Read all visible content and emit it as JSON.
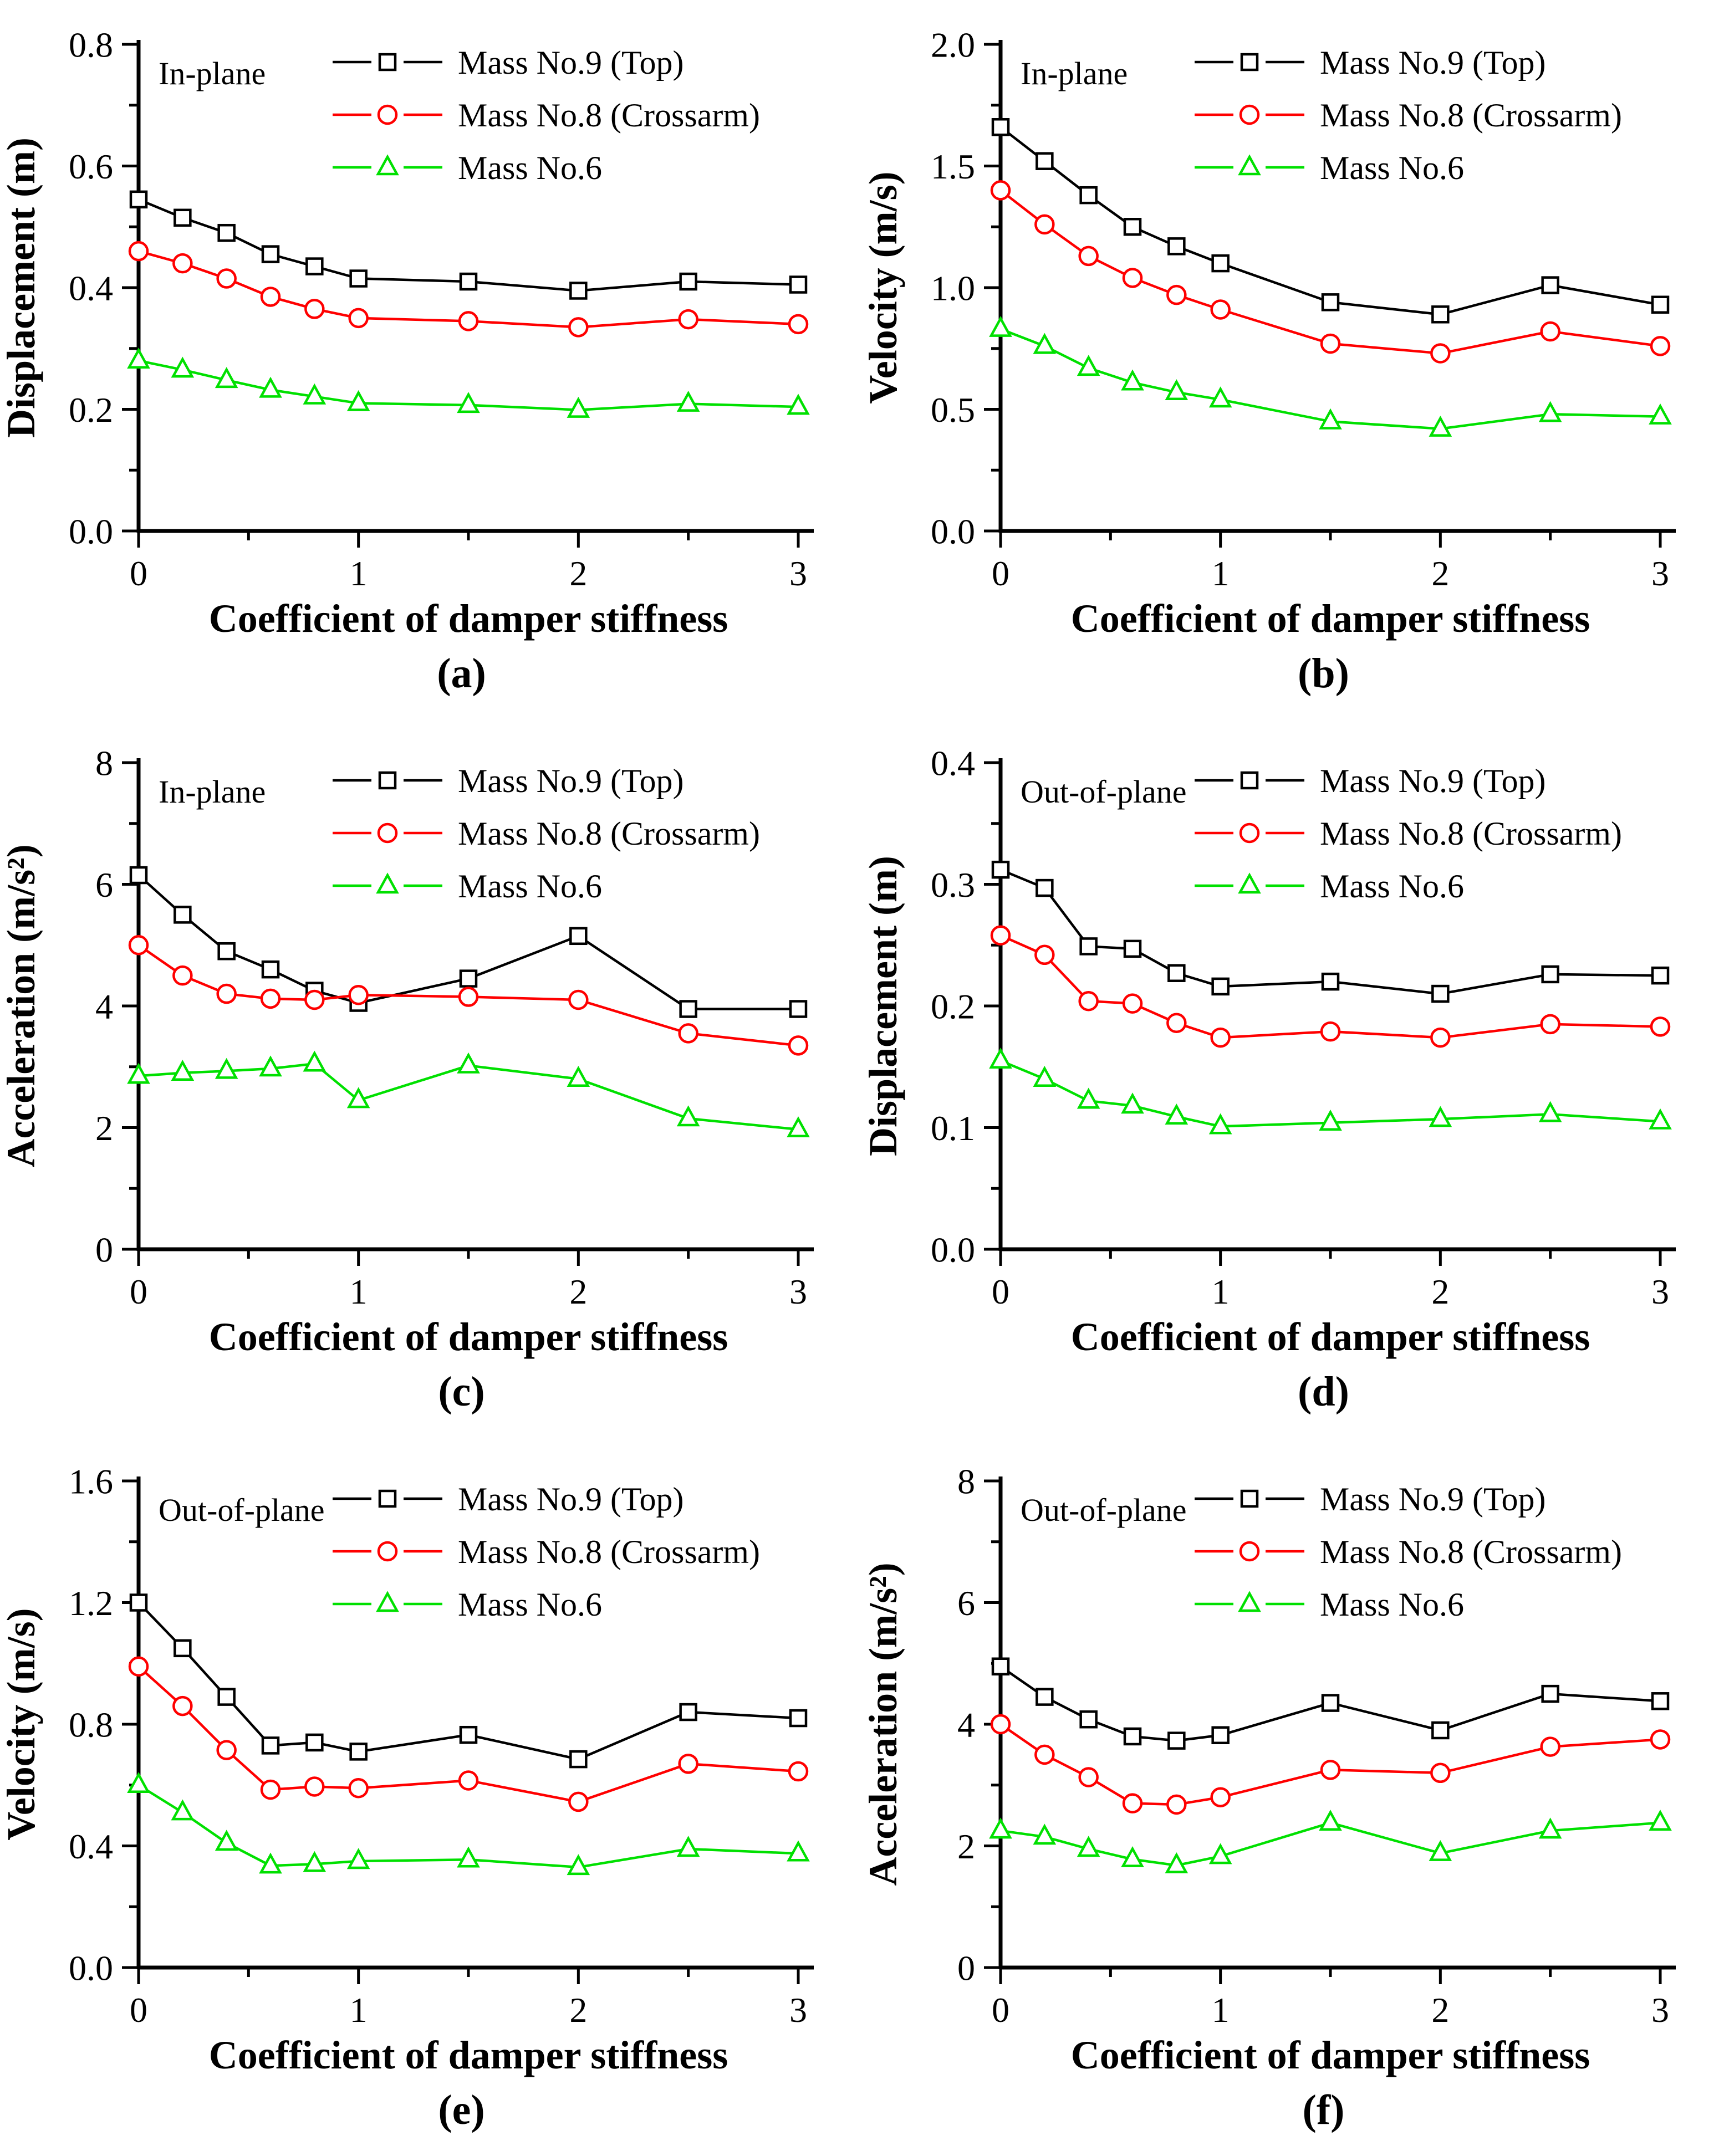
{
  "figure_caption_letters": [
    "(a)",
    "(b)",
    "(c)",
    "(d)",
    "(e)",
    "(f)"
  ],
  "colors": {
    "mass9": "#000000",
    "mass8": "#FF0000",
    "mass6": "#00E000"
  },
  "chart_data": [
    {
      "type": "line",
      "panel": "a",
      "panel_label": "(a)",
      "annotation": "In-plane",
      "xlabel": "Coefficient of damper stiffness",
      "ylabel": "Displacement (m)",
      "xlim": [
        0,
        3
      ],
      "ylim": [
        0,
        0.8
      ],
      "xticks_major": [
        0,
        1,
        2,
        3
      ],
      "xtick_labels": [
        "0",
        "1",
        "2",
        "3"
      ],
      "xticks_minor": [
        0.5,
        1.5,
        2.5
      ],
      "yticks": [
        0,
        0.2,
        0.4,
        0.6,
        0.8
      ],
      "ytick_labels": [
        "0.0",
        "0.2",
        "0.4",
        "0.6",
        "0.8"
      ],
      "grid": false,
      "legend_position": "top-right",
      "x": [
        0,
        0.2,
        0.4,
        0.6,
        0.8,
        1,
        1.5,
        2,
        2.5,
        3
      ],
      "series": [
        {
          "name": "Mass No.9 (Top)",
          "color": "#000000",
          "marker": "square",
          "values": [
            0.545,
            0.515,
            0.49,
            0.455,
            0.435,
            0.415,
            0.41,
            0.395,
            0.41,
            0.405
          ]
        },
        {
          "name": "Mass No.8 (Crossarm)",
          "color": "#FF0000",
          "marker": "circle",
          "values": [
            0.46,
            0.44,
            0.415,
            0.385,
            0.365,
            0.35,
            0.345,
            0.335,
            0.348,
            0.34
          ]
        },
        {
          "name": "Mass No.6",
          "color": "#00E000",
          "marker": "triangle",
          "values": [
            0.28,
            0.265,
            0.248,
            0.232,
            0.221,
            0.21,
            0.207,
            0.199,
            0.209,
            0.204
          ]
        }
      ]
    },
    {
      "type": "line",
      "panel": "b",
      "panel_label": "(b)",
      "annotation": "In-plane",
      "xlabel": "Coefficient of damper stiffness",
      "ylabel": "Velocity (m/s)",
      "xlim": [
        0,
        3
      ],
      "ylim": [
        0,
        2.0
      ],
      "xticks_major": [
        0,
        1,
        2,
        3
      ],
      "xtick_labels": [
        "0",
        "1",
        "2",
        "3"
      ],
      "xticks_minor": [
        0.5,
        1.5,
        2.5
      ],
      "yticks": [
        0,
        0.5,
        1.0,
        1.5,
        2.0
      ],
      "ytick_labels": [
        "0.0",
        "0.5",
        "1.0",
        "1.5",
        "2.0"
      ],
      "grid": false,
      "legend_position": "top-right",
      "x": [
        0,
        0.2,
        0.4,
        0.6,
        0.8,
        1,
        1.5,
        2,
        2.5,
        3
      ],
      "series": [
        {
          "name": "Mass No.9 (Top)",
          "color": "#000000",
          "marker": "square",
          "values": [
            1.66,
            1.52,
            1.38,
            1.25,
            1.17,
            1.1,
            0.94,
            0.89,
            1.01,
            0.93
          ]
        },
        {
          "name": "Mass No.8 (Crossarm)",
          "color": "#FF0000",
          "marker": "circle",
          "values": [
            1.4,
            1.26,
            1.13,
            1.04,
            0.97,
            0.91,
            0.77,
            0.73,
            0.82,
            0.76
          ]
        },
        {
          "name": "Mass No.6",
          "color": "#00E000",
          "marker": "triangle",
          "values": [
            0.83,
            0.76,
            0.67,
            0.61,
            0.57,
            0.54,
            0.45,
            0.42,
            0.48,
            0.47
          ]
        }
      ]
    },
    {
      "type": "line",
      "panel": "c",
      "panel_label": "(c)",
      "annotation": "In-plane",
      "xlabel": "Coefficient of damper stiffness",
      "ylabel": "Acceleration (m/s²)",
      "xlim": [
        0,
        3
      ],
      "ylim": [
        0,
        8
      ],
      "xticks_major": [
        0,
        1,
        2,
        3
      ],
      "xtick_labels": [
        "0",
        "1",
        "2",
        "3"
      ],
      "xticks_minor": [
        0.5,
        1.5,
        2.5
      ],
      "yticks": [
        0,
        2,
        4,
        6,
        8
      ],
      "ytick_labels": [
        "0",
        "2",
        "4",
        "6",
        "8"
      ],
      "grid": false,
      "legend_position": "top-right",
      "x": [
        0,
        0.2,
        0.4,
        0.6,
        0.8,
        1,
        1.5,
        2,
        2.5,
        3
      ],
      "series": [
        {
          "name": "Mass No.9 (Top)",
          "color": "#000000",
          "marker": "square",
          "values": [
            6.15,
            5.5,
            4.9,
            4.6,
            4.25,
            4.05,
            4.45,
            5.15,
            3.95,
            3.95
          ]
        },
        {
          "name": "Mass No.8 (Crossarm)",
          "color": "#FF0000",
          "marker": "circle",
          "values": [
            5.0,
            4.5,
            4.2,
            4.12,
            4.1,
            4.18,
            4.15,
            4.1,
            3.55,
            3.35
          ]
        },
        {
          "name": "Mass No.6",
          "color": "#00E000",
          "marker": "triangle",
          "values": [
            2.85,
            2.9,
            2.93,
            2.97,
            3.05,
            2.45,
            3.02,
            2.8,
            2.15,
            1.97
          ]
        }
      ]
    },
    {
      "type": "line",
      "panel": "d",
      "panel_label": "(d)",
      "annotation": "Out-of-plane",
      "xlabel": "Coefficient of damper stiffness",
      "ylabel": "Displacement (m)",
      "xlim": [
        0,
        3
      ],
      "ylim": [
        0,
        0.4
      ],
      "xticks_major": [
        0,
        1,
        2,
        3
      ],
      "xtick_labels": [
        "0",
        "1",
        "2",
        "3"
      ],
      "xticks_minor": [
        0.5,
        1.5,
        2.5
      ],
      "yticks": [
        0,
        0.1,
        0.2,
        0.3,
        0.4
      ],
      "ytick_labels": [
        "0.0",
        "0.1",
        "0.2",
        "0.3",
        "0.4"
      ],
      "grid": false,
      "legend_position": "top-right",
      "x": [
        0,
        0.2,
        0.4,
        0.6,
        0.8,
        1,
        1.5,
        2,
        2.5,
        3
      ],
      "series": [
        {
          "name": "Mass No.9 (Top)",
          "color": "#000000",
          "marker": "square",
          "values": [
            0.312,
            0.297,
            0.249,
            0.247,
            0.227,
            0.216,
            0.22,
            0.21,
            0.226,
            0.225
          ]
        },
        {
          "name": "Mass No.8 (Crossarm)",
          "color": "#FF0000",
          "marker": "circle",
          "values": [
            0.258,
            0.242,
            0.204,
            0.202,
            0.186,
            0.174,
            0.179,
            0.174,
            0.185,
            0.183
          ]
        },
        {
          "name": "Mass No.6",
          "color": "#00E000",
          "marker": "triangle",
          "values": [
            0.155,
            0.14,
            0.122,
            0.118,
            0.109,
            0.101,
            0.104,
            0.107,
            0.111,
            0.105
          ]
        }
      ]
    },
    {
      "type": "line",
      "panel": "e",
      "panel_label": "(e)",
      "annotation": "Out-of-plane",
      "xlabel": "Coefficient of damper stiffness",
      "ylabel": "Velocity (m/s)",
      "xlim": [
        0,
        3
      ],
      "ylim": [
        0,
        1.6
      ],
      "xticks_major": [
        0,
        1,
        2,
        3
      ],
      "xtick_labels": [
        "0",
        "1",
        "2",
        "3"
      ],
      "xticks_minor": [
        0.5,
        1.5,
        2.5
      ],
      "yticks": [
        0,
        0.4,
        0.8,
        1.2,
        1.6
      ],
      "ytick_labels": [
        "0.0",
        "0.4",
        "0.8",
        "1.2",
        "1.6"
      ],
      "grid": false,
      "legend_position": "top-right",
      "x": [
        0,
        0.2,
        0.4,
        0.6,
        0.8,
        1,
        1.5,
        2,
        2.5,
        3
      ],
      "series": [
        {
          "name": "Mass No.9 (Top)",
          "color": "#000000",
          "marker": "square",
          "values": [
            1.2,
            1.05,
            0.89,
            0.73,
            0.74,
            0.71,
            0.765,
            0.685,
            0.84,
            0.82
          ]
        },
        {
          "name": "Mass No.8 (Crossarm)",
          "color": "#FF0000",
          "marker": "circle",
          "values": [
            0.99,
            0.86,
            0.715,
            0.585,
            0.595,
            0.59,
            0.615,
            0.545,
            0.67,
            0.645
          ]
        },
        {
          "name": "Mass No.6",
          "color": "#00E000",
          "marker": "triangle",
          "values": [
            0.6,
            0.51,
            0.41,
            0.335,
            0.34,
            0.35,
            0.355,
            0.33,
            0.39,
            0.375
          ]
        }
      ]
    },
    {
      "type": "line",
      "panel": "f",
      "panel_label": "(f)",
      "annotation": "Out-of-plane",
      "xlabel": "Coefficient of damper stiffness",
      "ylabel": "Acceleration (m/s²)",
      "xlim": [
        0,
        3
      ],
      "ylim": [
        0,
        8
      ],
      "xticks_major": [
        0,
        1,
        2,
        3
      ],
      "xtick_labels": [
        "0",
        "1",
        "2",
        "3"
      ],
      "xticks_minor": [
        0.5,
        1.5,
        2.5
      ],
      "yticks": [
        0,
        2,
        4,
        6,
        8
      ],
      "ytick_labels": [
        "0",
        "2",
        "4",
        "6",
        "8"
      ],
      "grid": false,
      "legend_position": "top-right",
      "x": [
        0,
        0.2,
        0.4,
        0.6,
        0.8,
        1,
        1.5,
        2,
        2.5,
        3
      ],
      "series": [
        {
          "name": "Mass No.9 (Top)",
          "color": "#000000",
          "marker": "square",
          "values": [
            4.95,
            4.45,
            4.08,
            3.8,
            3.73,
            3.82,
            4.35,
            3.9,
            4.5,
            4.38
          ]
        },
        {
          "name": "Mass No.8 (Crossarm)",
          "color": "#FF0000",
          "marker": "circle",
          "values": [
            4.0,
            3.5,
            3.13,
            2.7,
            2.68,
            2.8,
            3.25,
            3.2,
            3.63,
            3.75
          ]
        },
        {
          "name": "Mass No.6",
          "color": "#00E000",
          "marker": "triangle",
          "values": [
            2.25,
            2.15,
            1.95,
            1.78,
            1.68,
            1.83,
            2.38,
            1.88,
            2.25,
            2.38
          ]
        }
      ]
    }
  ]
}
